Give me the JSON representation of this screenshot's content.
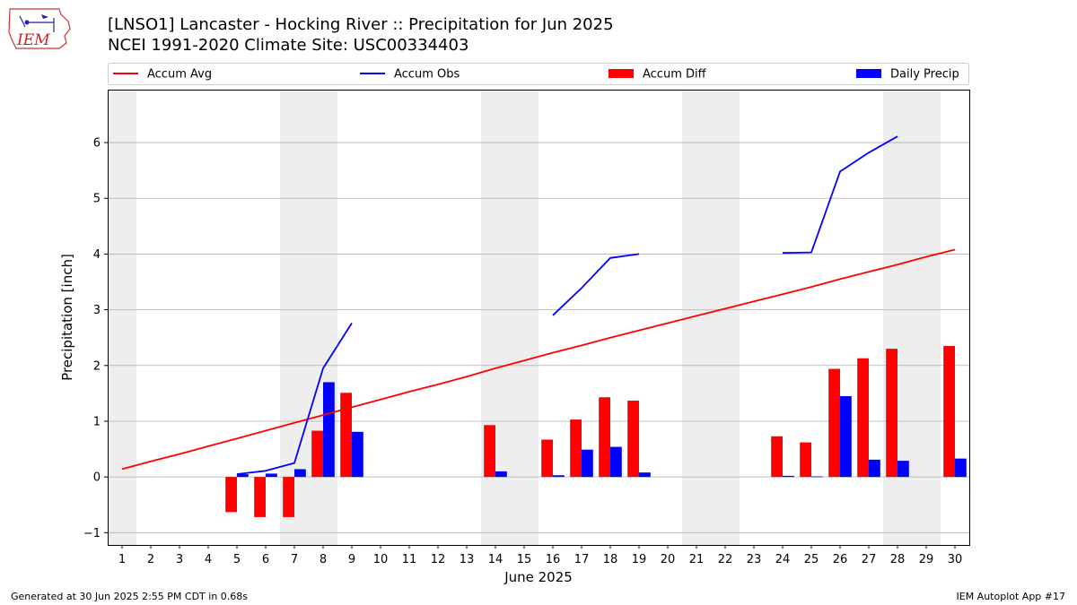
{
  "title_line1": "[LNSO1] Lancaster - Hocking River :: Precipitation for Jun 2025",
  "title_line2": "NCEI 1991-2020 Climate Site: USC00334403",
  "footer_left": "Generated at 30 Jun 2025 2:55 PM CDT in 0.68s",
  "footer_right": "IEM Autoplot App #17",
  "logo_text": "IEM",
  "colors": {
    "accum_avg": "#ff0000",
    "accum_obs": "#0000ff",
    "accum_diff": "#ff0000",
    "daily_precip": "#0000ff",
    "weekend_shade": "#eeeeee",
    "grid": "#b0b0b0"
  },
  "chart_data": {
    "type": "bar",
    "xlabel": "June 2025",
    "ylabel": "Precipitation [inch]",
    "xlim": [
      0.5,
      30.5
    ],
    "ylim": [
      -1.22,
      6.95
    ],
    "yticks": [
      -1,
      0,
      1,
      2,
      3,
      4,
      5,
      6
    ],
    "grid": "y",
    "legend_position": "top",
    "weekend_days": [
      1,
      7,
      8,
      14,
      15,
      21,
      22,
      28,
      29
    ],
    "legend": [
      {
        "label": "Accum Avg",
        "kind": "line",
        "color": "#ff0000"
      },
      {
        "label": "Accum Obs",
        "kind": "line",
        "color": "#0000ff"
      },
      {
        "label": "Accum Diff",
        "kind": "bar",
        "color": "#ff0000"
      },
      {
        "label": "Daily Precip",
        "kind": "bar",
        "color": "#0000ff"
      }
    ],
    "days": [
      1,
      2,
      3,
      4,
      5,
      6,
      7,
      8,
      9,
      10,
      11,
      12,
      13,
      14,
      15,
      16,
      17,
      18,
      19,
      20,
      21,
      22,
      23,
      24,
      25,
      26,
      27,
      28,
      29,
      30
    ],
    "accum_avg": [
      0.14,
      0.28,
      0.41,
      0.55,
      0.69,
      0.83,
      0.97,
      1.11,
      1.25,
      1.39,
      1.53,
      1.66,
      1.8,
      1.95,
      2.09,
      2.23,
      2.36,
      2.5,
      2.63,
      2.76,
      2.89,
      3.02,
      3.15,
      3.28,
      3.41,
      3.55,
      3.68,
      3.81,
      3.95,
      4.08
    ],
    "accum_obs": [
      null,
      null,
      null,
      null,
      0.05,
      0.11,
      0.25,
      1.95,
      2.76,
      null,
      null,
      null,
      null,
      null,
      null,
      2.9,
      3.39,
      3.93,
      4.0,
      null,
      null,
      null,
      null,
      4.02,
      4.03,
      5.48,
      5.82,
      6.11,
      null,
      null
    ],
    "accum_diff": [
      null,
      null,
      null,
      null,
      -0.63,
      -0.72,
      -0.72,
      0.83,
      1.51,
      null,
      null,
      null,
      null,
      0.93,
      null,
      0.67,
      1.03,
      1.43,
      1.37,
      null,
      null,
      null,
      null,
      0.73,
      0.62,
      1.94,
      2.13,
      2.3,
      null,
      2.35
    ],
    "daily_precip": [
      null,
      null,
      null,
      null,
      0.05,
      0.06,
      0.14,
      1.7,
      0.81,
      null,
      null,
      null,
      null,
      0.1,
      null,
      0.03,
      0.49,
      0.54,
      0.08,
      null,
      null,
      null,
      null,
      0.02,
      0.01,
      1.45,
      0.31,
      0.29,
      null,
      0.33
    ]
  }
}
